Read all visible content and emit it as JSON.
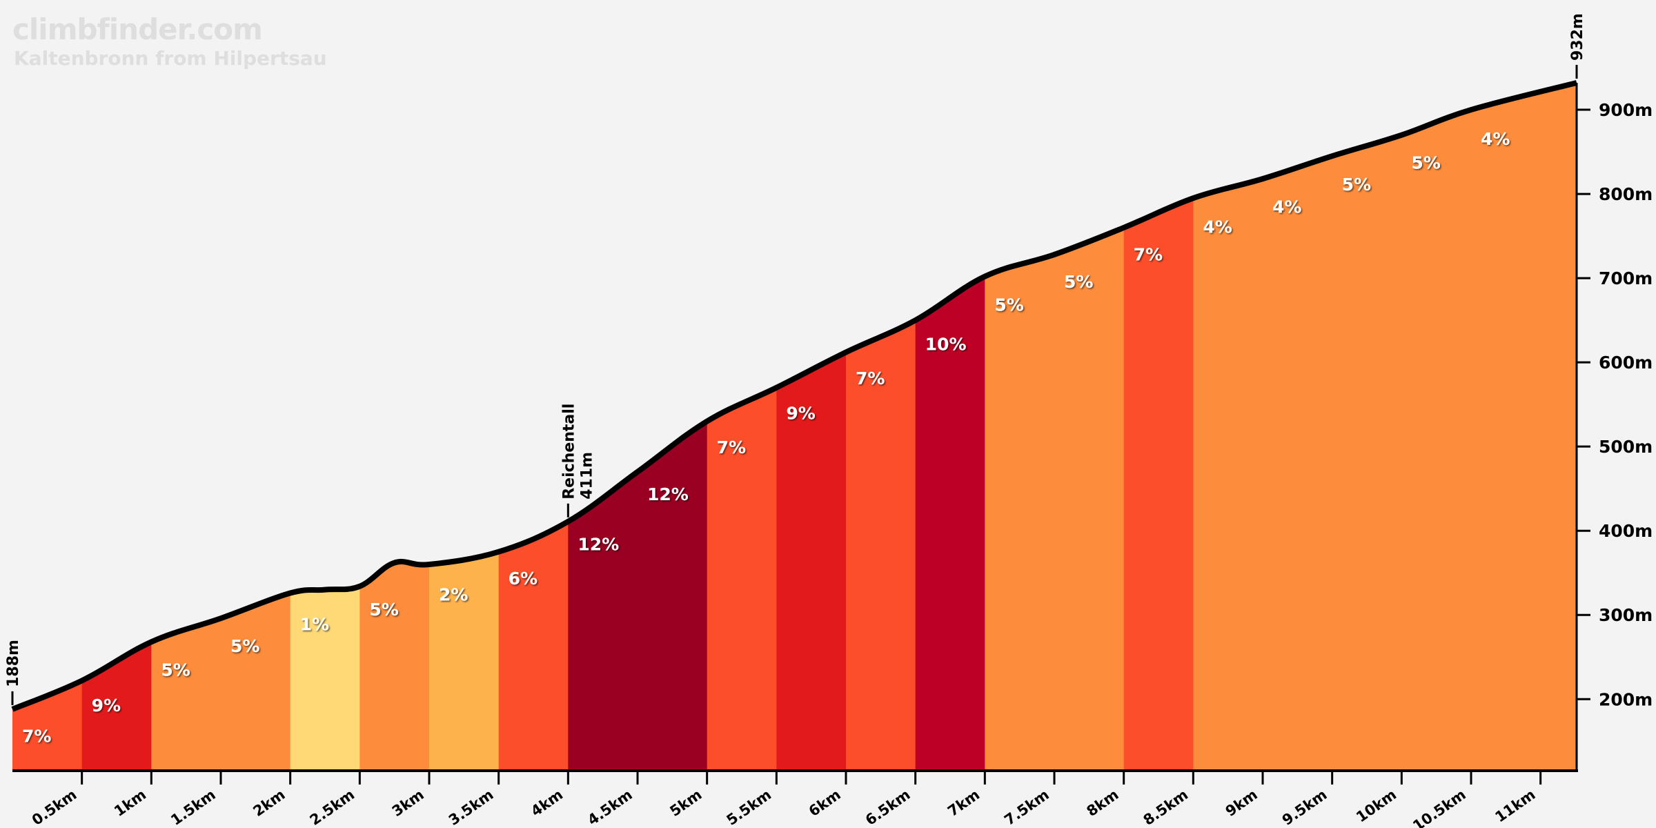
{
  "header": {
    "brand": "climbfinder.com",
    "title": "Kaltenbronn from Hilpertsau"
  },
  "chart_data": {
    "type": "area",
    "title": "Kaltenbronn from Hilpertsau",
    "xlabel": "",
    "ylabel": "",
    "xlim": [
      0,
      11.26
    ],
    "ylim": [
      115,
      932
    ],
    "x_ticks": [
      0.5,
      1,
      1.5,
      2,
      2.5,
      3,
      3.5,
      4,
      4.5,
      5,
      5.5,
      6,
      6.5,
      7,
      7.5,
      8,
      8.5,
      9,
      9.5,
      10,
      10.5,
      11
    ],
    "x_tick_labels": [
      "0.5km",
      "1km",
      "1.5km",
      "2km",
      "2.5km",
      "3km",
      "3.5km",
      "4km",
      "4.5km",
      "5km",
      "5.5km",
      "6km",
      "6.5km",
      "7km",
      "7.5km",
      "8km",
      "8.5km",
      "9km",
      "9.5km",
      "10km",
      "10.5km",
      "11km"
    ],
    "y_ticks": [
      200,
      300,
      400,
      500,
      600,
      700,
      800,
      900
    ],
    "y_tick_labels": [
      "200m",
      "300m",
      "400m",
      "500m",
      "600m",
      "700m",
      "800m",
      "900m"
    ],
    "profile": {
      "x": [
        0,
        0.5,
        1,
        1.5,
        2,
        2.25,
        2.5,
        2.75,
        3,
        3.5,
        4,
        4.5,
        5,
        5.5,
        6,
        6.5,
        7,
        7.5,
        8,
        8.5,
        9,
        9.5,
        10,
        10.5,
        11.26
      ],
      "y": [
        188,
        222,
        268,
        296,
        326,
        330,
        334,
        362,
        360,
        375,
        411,
        470,
        530,
        570,
        612,
        650,
        702,
        728,
        760,
        795,
        818,
        845,
        870,
        900,
        932
      ]
    },
    "segments": [
      {
        "start": 0,
        "end": 0.5,
        "grade": "7%",
        "color": "#fc4e2a"
      },
      {
        "start": 0.5,
        "end": 1,
        "grade": "9%",
        "color": "#e31a1c"
      },
      {
        "start": 1,
        "end": 1.5,
        "grade": "5%",
        "color": "#fd8d3c"
      },
      {
        "start": 1.5,
        "end": 2,
        "grade": "5%",
        "color": "#fd8d3c"
      },
      {
        "start": 2,
        "end": 2.5,
        "grade": "1%",
        "color": "#fed976"
      },
      {
        "start": 2.5,
        "end": 3,
        "grade": "5%",
        "color": "#fd8d3c"
      },
      {
        "start": 3,
        "end": 3.5,
        "grade": "2%",
        "color": "#feb24c"
      },
      {
        "start": 3.5,
        "end": 4,
        "grade": "6%",
        "color": "#fc4e2a"
      },
      {
        "start": 4,
        "end": 4.5,
        "grade": "12%",
        "color": "#990022"
      },
      {
        "start": 4.5,
        "end": 5,
        "grade": "12%",
        "color": "#990022"
      },
      {
        "start": 5,
        "end": 5.5,
        "grade": "7%",
        "color": "#fc4e2a"
      },
      {
        "start": 5.5,
        "end": 6,
        "grade": "9%",
        "color": "#e31a1c"
      },
      {
        "start": 6,
        "end": 6.5,
        "grade": "7%",
        "color": "#fc4e2a"
      },
      {
        "start": 6.5,
        "end": 7,
        "grade": "10%",
        "color": "#bd0026"
      },
      {
        "start": 7,
        "end": 7.5,
        "grade": "5%",
        "color": "#fd8d3c"
      },
      {
        "start": 7.5,
        "end": 8,
        "grade": "5%",
        "color": "#fd8d3c"
      },
      {
        "start": 8,
        "end": 8.5,
        "grade": "7%",
        "color": "#fc4e2a"
      },
      {
        "start": 8.5,
        "end": 9,
        "grade": "4%",
        "color": "#fd8d3c"
      },
      {
        "start": 9,
        "end": 9.5,
        "grade": "4%",
        "color": "#fd8d3c"
      },
      {
        "start": 9.5,
        "end": 10,
        "grade": "5%",
        "color": "#fd8d3c"
      },
      {
        "start": 10,
        "end": 10.5,
        "grade": "5%",
        "color": "#fd8d3c"
      },
      {
        "start": 10.5,
        "end": 11.26,
        "grade": "4%",
        "color": "#fd8d3c"
      }
    ],
    "annotations": [
      {
        "x": 0,
        "elev": 188,
        "label": "188m"
      },
      {
        "x": 4,
        "elev": 411,
        "label": "Reichentall",
        "sublabel": "411m"
      },
      {
        "x": 11.26,
        "elev": 932,
        "label": "932m"
      }
    ]
  }
}
